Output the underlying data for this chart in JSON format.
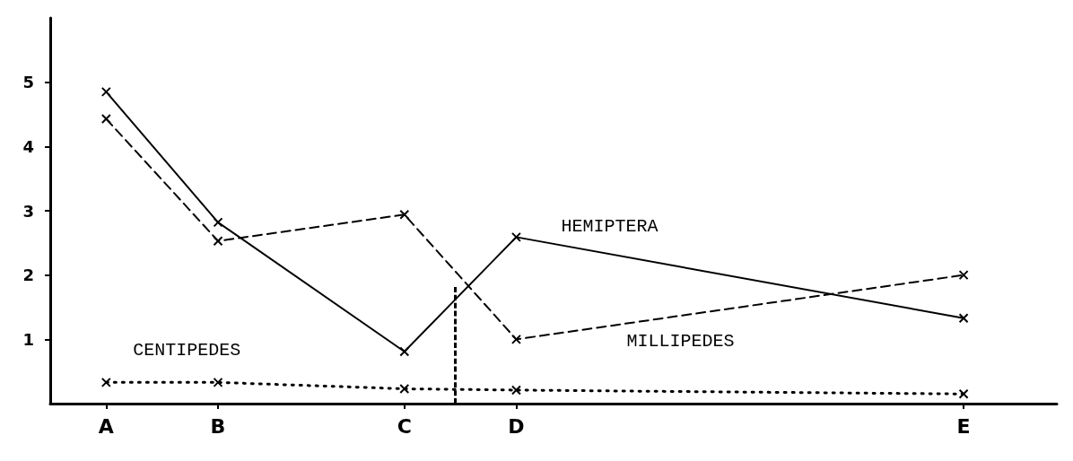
{
  "chart_data": {
    "type": "line",
    "ylim": [
      0,
      6
    ],
    "categories": [
      null,
      "A",
      null,
      null,
      "B",
      null,
      null,
      null,
      null,
      "C",
      null,
      null,
      "D",
      null,
      null,
      null,
      null,
      null,
      null,
      null,
      null,
      null,
      null,
      null,
      "E",
      null,
      null
    ],
    "yticks": [
      1,
      2,
      3,
      4,
      5
    ],
    "grid": false,
    "legend": false,
    "marker": "cross",
    "series": [
      {
        "name": "HEMIPTERA",
        "color": "#000000",
        "line_style": "solid",
        "x": [
          "A",
          "B",
          "C",
          "D",
          "E"
        ],
        "values": [
          4.85,
          2.82,
          0.81,
          2.59,
          1.33
        ]
      },
      {
        "name": "MILLIPEDES",
        "color": "#000000",
        "line_style": "dashed",
        "x": [
          "A",
          "B",
          "C",
          "D",
          "E"
        ],
        "values": [
          4.43,
          2.53,
          2.94,
          1.0,
          2.0
        ]
      },
      {
        "name": "CENTIPEDES",
        "color": "#000000",
        "line_style": "dotted",
        "x": [
          "A",
          "B",
          "C",
          "D",
          "E"
        ],
        "values": [
          0.33,
          0.33,
          0.23,
          0.21,
          0.15
        ]
      }
    ]
  }
}
